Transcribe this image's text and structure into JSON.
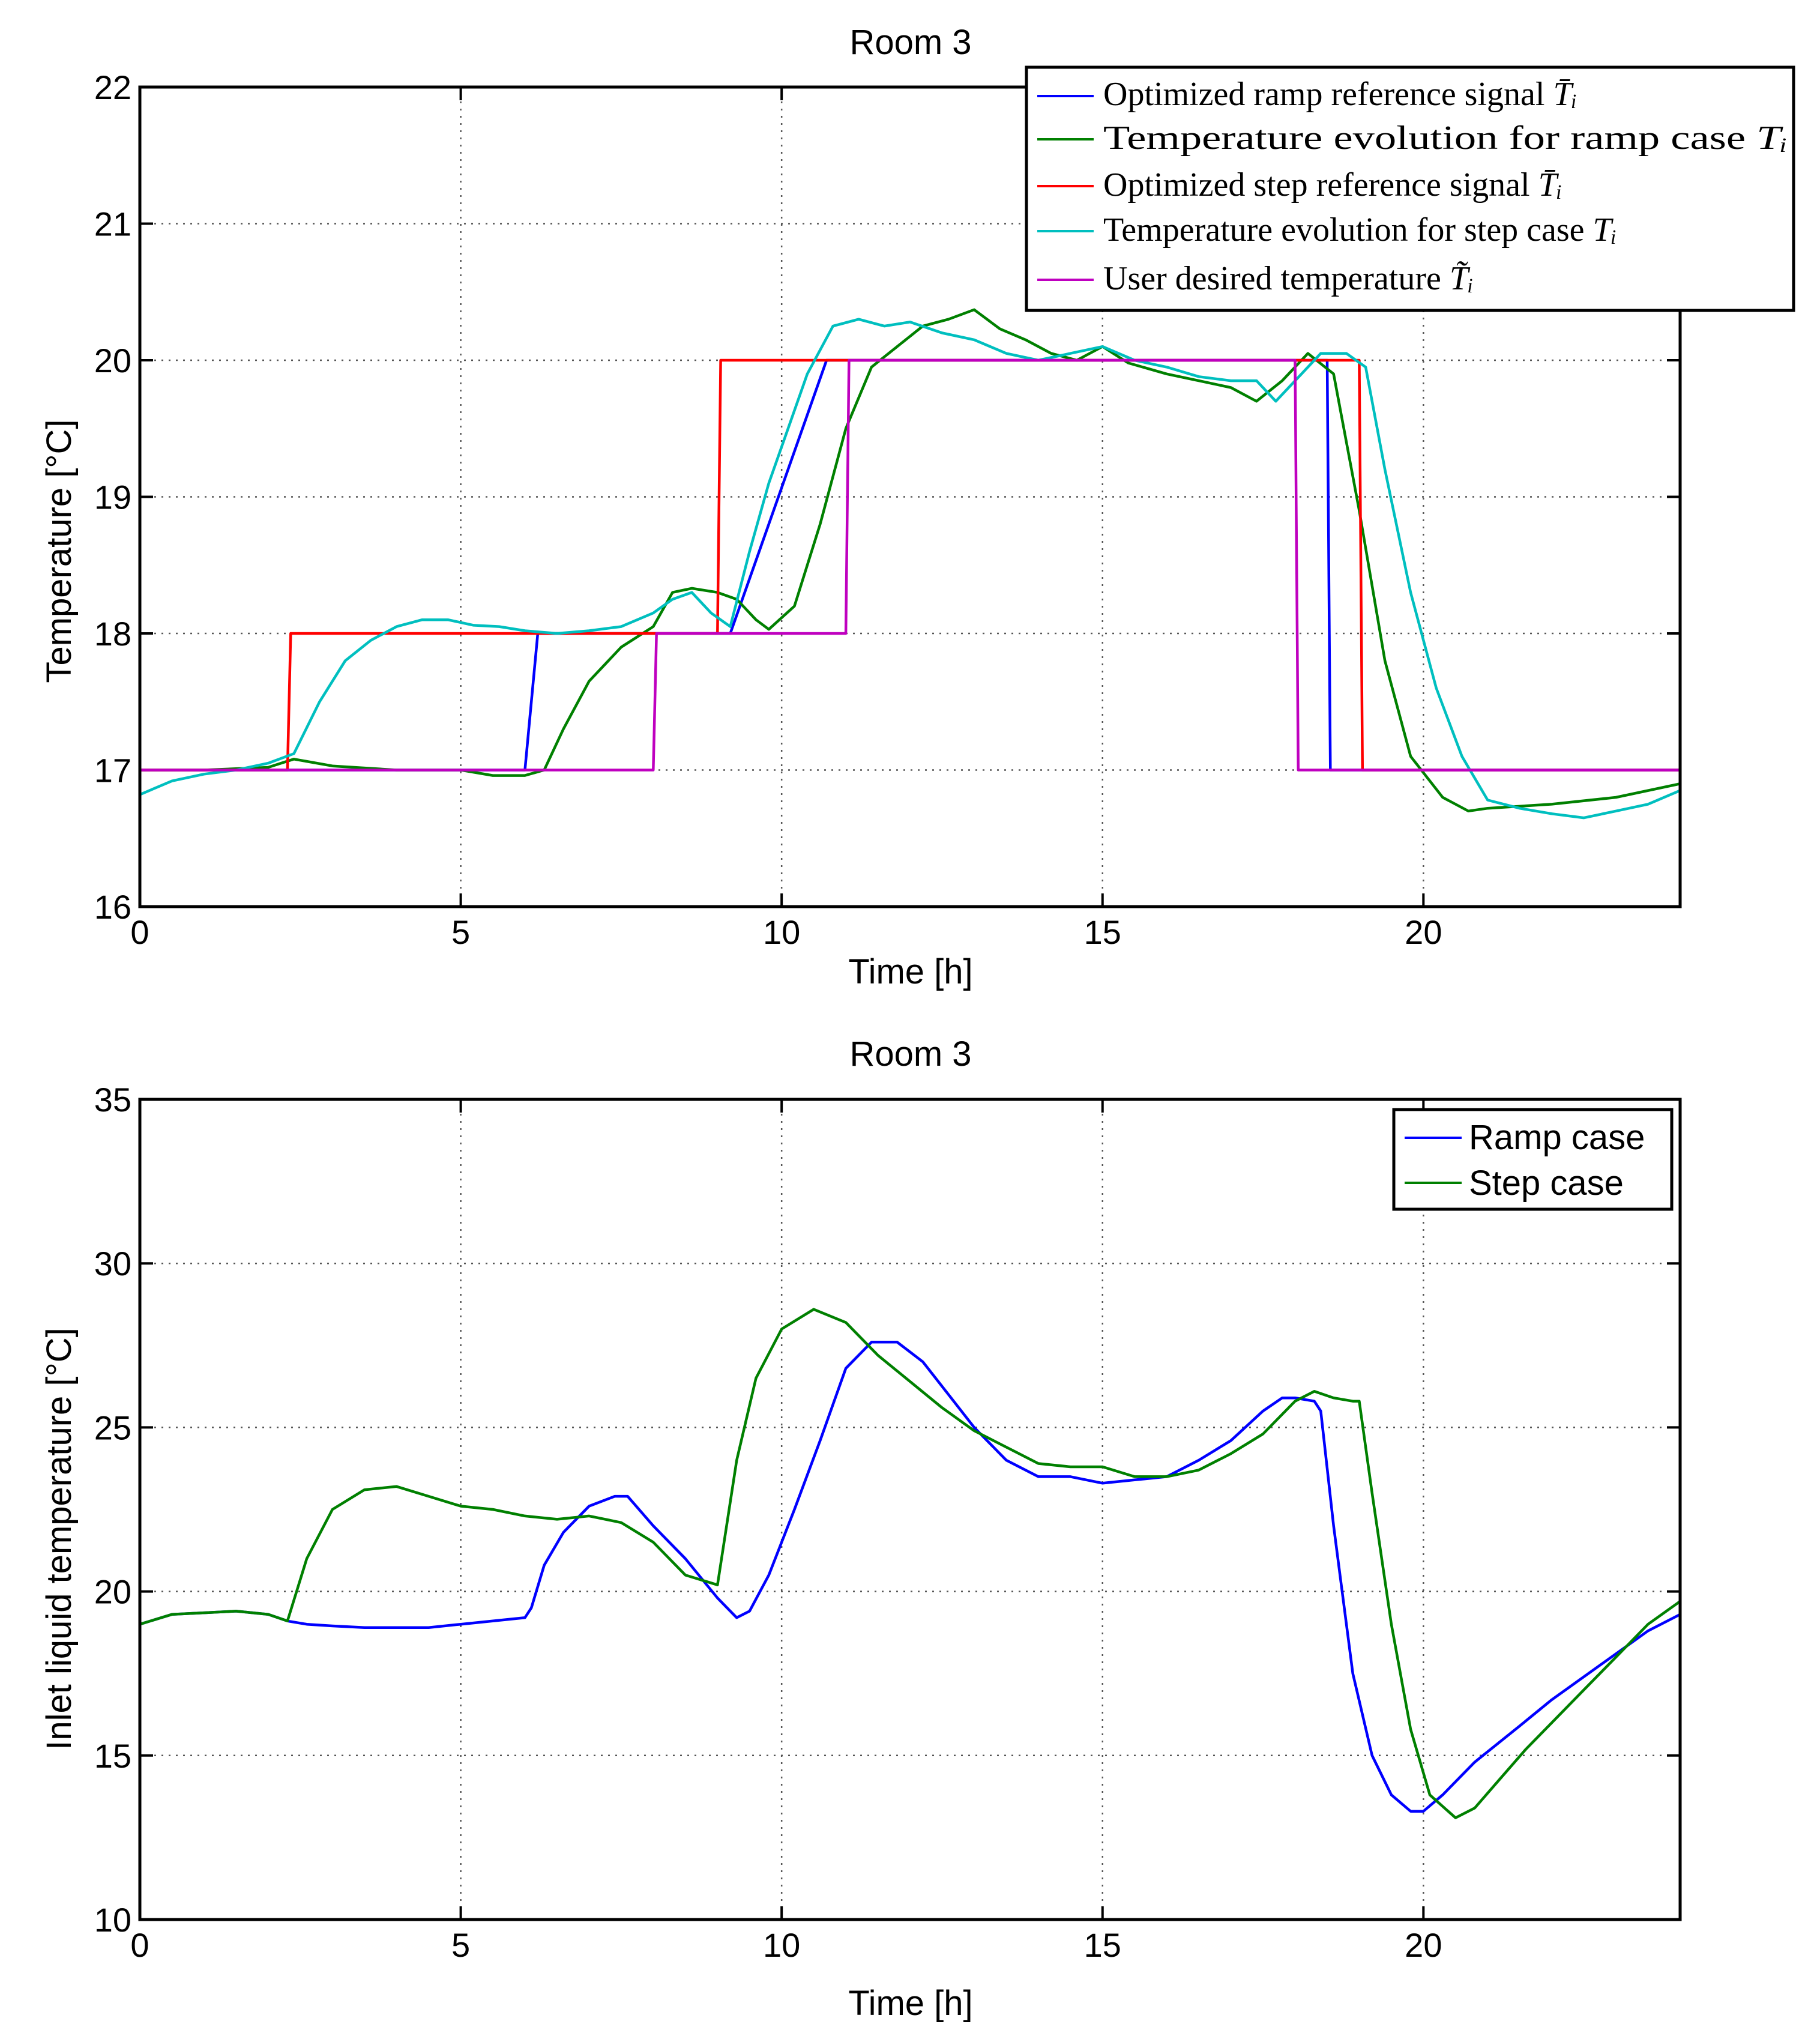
{
  "chart_data": [
    {
      "type": "line",
      "title": "Room 3",
      "xlabel": "Time [h]",
      "ylabel": "Temperature [°C]",
      "xlim": [
        0,
        24
      ],
      "ylim": [
        16,
        22
      ],
      "xticks": [
        0,
        5,
        10,
        15,
        20
      ],
      "yticks": [
        16,
        17,
        18,
        19,
        20,
        21,
        22
      ],
      "grid": true,
      "legend_position": "top-right",
      "series": [
        {
          "name": "Optimized ramp reference signal",
          "legend_var": "T̄ᵢ",
          "color": "#0000ff",
          "x": [
            0,
            6.0,
            6.2,
            9.2,
            10.7,
            18.3,
            18.5,
            18.55,
            24
          ],
          "y": [
            17,
            17,
            18,
            18,
            20,
            20,
            20,
            17,
            17
          ]
        },
        {
          "name": "Temperature evolution for ramp case",
          "legend_var": "Tᵢ",
          "color": "#008000",
          "x": [
            0,
            1,
            2,
            2.4,
            3,
            4,
            5,
            5.5,
            6,
            6.3,
            6.6,
            7,
            7.5,
            8,
            8.3,
            8.6,
            9,
            9.3,
            9.6,
            9.8,
            10.2,
            10.6,
            11,
            11.4,
            11.8,
            12.2,
            12.6,
            13,
            13.4,
            13.8,
            14.2,
            14.6,
            15,
            15.4,
            16,
            16.5,
            17,
            17.4,
            17.8,
            18.2,
            18.6,
            19,
            19.4,
            19.8,
            20.3,
            20.7,
            21,
            22,
            23,
            24
          ],
          "y": [
            17.0,
            17.0,
            17.02,
            17.08,
            17.03,
            17.0,
            17.0,
            16.96,
            16.96,
            17.0,
            17.3,
            17.65,
            17.9,
            18.05,
            18.3,
            18.33,
            18.3,
            18.25,
            18.1,
            18.03,
            18.2,
            18.8,
            19.5,
            19.95,
            20.1,
            20.25,
            20.3,
            20.37,
            20.23,
            20.15,
            20.05,
            20.0,
            20.1,
            19.98,
            19.9,
            19.85,
            19.8,
            19.7,
            19.85,
            20.05,
            19.9,
            18.9,
            17.8,
            17.1,
            16.8,
            16.7,
            16.72,
            16.75,
            16.8,
            16.9
          ]
        },
        {
          "name": "Optimized step reference signal",
          "legend_var": "T̄ᵢ",
          "color": "#ff0000",
          "x": [
            0,
            2.3,
            2.35,
            9.0,
            9.05,
            19.0,
            19.05,
            24
          ],
          "y": [
            17,
            17,
            18,
            18,
            20,
            20,
            17,
            17
          ]
        },
        {
          "name": "Temperature evolution for step case",
          "legend_var": "Tᵢ",
          "color": "#00bfbf",
          "x": [
            0,
            0.5,
            1,
            1.5,
            2,
            2.4,
            2.8,
            3.2,
            3.6,
            4,
            4.4,
            4.8,
            5.2,
            5.6,
            6,
            6.5,
            7,
            7.5,
            8,
            8.3,
            8.6,
            8.9,
            9.2,
            9.5,
            9.8,
            10.1,
            10.4,
            10.8,
            11.2,
            11.6,
            12,
            12.5,
            13,
            13.5,
            14,
            14.5,
            15,
            15.5,
            16,
            16.5,
            17,
            17.4,
            17.7,
            18.1,
            18.4,
            18.8,
            19.1,
            19.4,
            19.8,
            20.2,
            20.6,
            21,
            21.5,
            22,
            22.5,
            23,
            23.5,
            24
          ],
          "y": [
            16.82,
            16.92,
            16.97,
            17.0,
            17.05,
            17.12,
            17.5,
            17.8,
            17.95,
            18.05,
            18.1,
            18.1,
            18.06,
            18.05,
            18.02,
            18.0,
            18.02,
            18.05,
            18.15,
            18.25,
            18.3,
            18.15,
            18.05,
            18.6,
            19.1,
            19.5,
            19.9,
            20.25,
            20.3,
            20.25,
            20.28,
            20.2,
            20.15,
            20.05,
            20.0,
            20.05,
            20.1,
            20.0,
            19.95,
            19.88,
            19.85,
            19.85,
            19.7,
            19.9,
            20.05,
            20.05,
            19.95,
            19.2,
            18.3,
            17.6,
            17.1,
            16.78,
            16.72,
            16.68,
            16.65,
            16.7,
            16.75,
            16.85
          ]
        },
        {
          "name": "User desired temperature",
          "legend_var": "T̃ᵢ",
          "color": "#bf00bf",
          "x": [
            0,
            8.0,
            8.05,
            11.0,
            11.05,
            18.0,
            18.05,
            24
          ],
          "y": [
            17,
            17,
            18,
            18,
            20,
            20,
            17,
            17
          ]
        }
      ]
    },
    {
      "type": "line",
      "title": "Room 3",
      "xlabel": "Time [h]",
      "ylabel": "Inlet liquid temperature [°C]",
      "xlim": [
        0,
        24
      ],
      "ylim": [
        10,
        35
      ],
      "xticks": [
        0,
        5,
        10,
        15,
        20
      ],
      "yticks": [
        10,
        15,
        20,
        25,
        30,
        35
      ],
      "grid": true,
      "legend_position": "top-right",
      "series": [
        {
          "name": "Ramp case",
          "color": "#0000ff",
          "x": [
            0,
            0.5,
            1,
            1.5,
            2,
            2.3,
            2.6,
            3,
            3.5,
            4,
            4.5,
            5,
            5.5,
            6,
            6.1,
            6.3,
            6.6,
            7,
            7.4,
            7.6,
            8,
            8.5,
            9,
            9.3,
            9.5,
            9.8,
            10.2,
            10.6,
            11,
            11.4,
            11.8,
            12.2,
            12.6,
            13,
            13.5,
            14,
            14.5,
            15,
            15.5,
            16,
            16.5,
            17,
            17.5,
            17.8,
            18.0,
            18.3,
            18.4,
            18.6,
            18.9,
            19.2,
            19.5,
            19.8,
            20.0,
            20.3,
            20.8,
            21.5,
            22,
            22.5,
            23,
            23.5,
            24
          ],
          "y": [
            19.0,
            19.3,
            19.35,
            19.4,
            19.3,
            19.1,
            19.0,
            18.95,
            18.9,
            18.9,
            18.9,
            19.0,
            19.1,
            19.2,
            19.5,
            20.8,
            21.8,
            22.6,
            22.9,
            22.9,
            22.0,
            21.0,
            19.8,
            19.2,
            19.4,
            20.5,
            22.5,
            24.6,
            26.8,
            27.6,
            27.6,
            27.0,
            26.0,
            25.0,
            24.0,
            23.5,
            23.5,
            23.3,
            23.4,
            23.5,
            24.0,
            24.6,
            25.5,
            25.9,
            25.9,
            25.8,
            25.5,
            22.0,
            17.5,
            15.0,
            13.8,
            13.3,
            13.3,
            13.8,
            14.8,
            15.9,
            16.7,
            17.4,
            18.1,
            18.8,
            19.3
          ]
        },
        {
          "name": "Step case",
          "color": "#008000",
          "x": [
            0,
            0.5,
            1,
            1.5,
            2,
            2.3,
            2.6,
            3,
            3.5,
            4,
            4.5,
            5,
            5.5,
            6,
            6.5,
            7,
            7.5,
            8,
            8.5,
            9.0,
            9.3,
            9.6,
            10,
            10.5,
            11,
            11.5,
            12,
            12.5,
            13,
            13.5,
            14,
            14.5,
            15,
            15.5,
            16,
            16.5,
            17,
            17.5,
            18,
            18.3,
            18.6,
            18.9,
            19.0,
            19.2,
            19.5,
            19.8,
            20.1,
            20.5,
            20.8,
            21.2,
            21.6,
            22,
            22.5,
            23,
            23.5,
            24
          ],
          "y": [
            19.0,
            19.3,
            19.35,
            19.4,
            19.3,
            19.1,
            21.0,
            22.5,
            23.1,
            23.2,
            22.9,
            22.6,
            22.5,
            22.3,
            22.2,
            22.3,
            22.1,
            21.5,
            20.5,
            20.2,
            24.0,
            26.5,
            28.0,
            28.6,
            28.2,
            27.2,
            26.4,
            25.6,
            24.9,
            24.4,
            23.9,
            23.8,
            23.8,
            23.5,
            23.5,
            23.7,
            24.2,
            24.8,
            25.8,
            26.1,
            25.9,
            25.8,
            25.8,
            23.0,
            19.0,
            15.8,
            13.8,
            13.1,
            13.4,
            14.3,
            15.2,
            16.0,
            17.0,
            18.0,
            19.0,
            19.7
          ]
        }
      ]
    }
  ]
}
